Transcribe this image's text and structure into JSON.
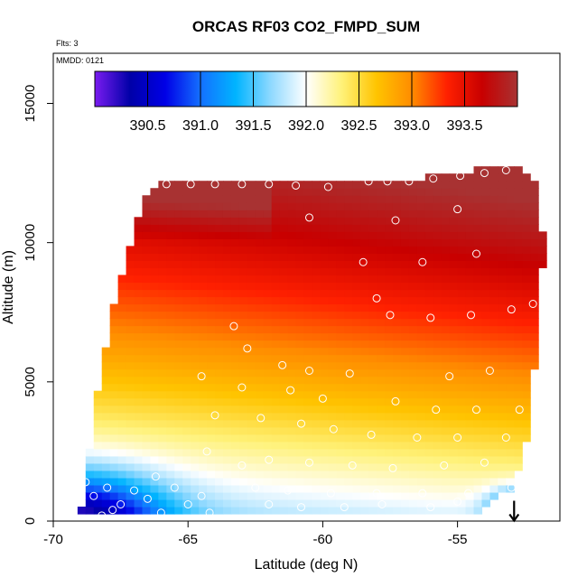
{
  "chart_data": {
    "type": "heatmap",
    "title": "ORCAS RF03 CO2_FMPD_SUM",
    "note_flights": "Flts: 3",
    "note_date": "MMDD: 0121",
    "xlabel": "Latitude (deg N)",
    "ylabel": "Altitude (m)",
    "xlim": [
      -70,
      -51.2
    ],
    "ylim": [
      0,
      16800
    ],
    "x_ticks": [
      -70,
      -65,
      -60,
      -55
    ],
    "x_tick_labels": [
      "-70",
      "-65",
      "-60",
      "-55"
    ],
    "y_ticks": [
      0,
      5000,
      10000,
      15000
    ],
    "y_tick_labels": [
      "0",
      "5000",
      "10000",
      "15000"
    ],
    "colorbar": {
      "range": [
        390.0,
        394.0
      ],
      "ticks": [
        390.5,
        391.0,
        391.5,
        392.0,
        392.5,
        393.0,
        393.5
      ],
      "tick_labels": [
        "390.5",
        "391.0",
        "391.5",
        "392.0",
        "392.5",
        "393.0",
        "393.5"
      ],
      "colors": [
        "#7a1cf0",
        "#0000a8",
        "#0000e6",
        "#1470ff",
        "#00b4ff",
        "#8fd9ff",
        "#ffffff",
        "#fff27a",
        "#ffc400",
        "#ff8c00",
        "#ff2000",
        "#c80000",
        "#a83232"
      ]
    },
    "field_boundary": {
      "lat": [
        -69,
        -68.3,
        -67.7,
        -67.2,
        -66.8,
        -66.2,
        -58.2,
        -53.0,
        -52.3,
        -52.0,
        -51.8,
        -51.9,
        -52.0,
        -52.2,
        -52.4,
        -53.0,
        -54.0,
        -55.0,
        -60.0,
        -65.0,
        -69.0
      ],
      "alt": [
        300,
        5000,
        8000,
        9700,
        11200,
        12100,
        12100,
        12800,
        12500,
        12000,
        10000,
        8000,
        7000,
        5000,
        3000,
        1200,
        400,
        200,
        200,
        200,
        300
      ]
    },
    "sample_points": [
      {
        "lat": -65.8,
        "alt": 12100
      },
      {
        "lat": -64.9,
        "alt": 12100
      },
      {
        "lat": -64.0,
        "alt": 12100
      },
      {
        "lat": -63.0,
        "alt": 12100
      },
      {
        "lat": -62.0,
        "alt": 12100
      },
      {
        "lat": -61.0,
        "alt": 12050
      },
      {
        "lat": -59.8,
        "alt": 12000
      },
      {
        "lat": -58.3,
        "alt": 12200
      },
      {
        "lat": -57.6,
        "alt": 12200
      },
      {
        "lat": -56.8,
        "alt": 12200
      },
      {
        "lat": -55.9,
        "alt": 12300
      },
      {
        "lat": -54.9,
        "alt": 12400
      },
      {
        "lat": -54.0,
        "alt": 12500
      },
      {
        "lat": -53.2,
        "alt": 12600
      },
      {
        "lat": -60.5,
        "alt": 10900
      },
      {
        "lat": -57.3,
        "alt": 10800
      },
      {
        "lat": -55.0,
        "alt": 11200
      },
      {
        "lat": -54.3,
        "alt": 9600
      },
      {
        "lat": -58.5,
        "alt": 9300
      },
      {
        "lat": -56.3,
        "alt": 9300
      },
      {
        "lat": -58.0,
        "alt": 8000
      },
      {
        "lat": -57.5,
        "alt": 7400
      },
      {
        "lat": -56.0,
        "alt": 7300
      },
      {
        "lat": -54.5,
        "alt": 7400
      },
      {
        "lat": -53.0,
        "alt": 7600
      },
      {
        "lat": -52.2,
        "alt": 7800
      },
      {
        "lat": -63.3,
        "alt": 7000
      },
      {
        "lat": -62.8,
        "alt": 6200
      },
      {
        "lat": -61.5,
        "alt": 5600
      },
      {
        "lat": -60.5,
        "alt": 5400
      },
      {
        "lat": -59.0,
        "alt": 5300
      },
      {
        "lat": -55.3,
        "alt": 5200
      },
      {
        "lat": -53.8,
        "alt": 5400
      },
      {
        "lat": -64.5,
        "alt": 5200
      },
      {
        "lat": -63.0,
        "alt": 4800
      },
      {
        "lat": -61.2,
        "alt": 4700
      },
      {
        "lat": -60.0,
        "alt": 4400
      },
      {
        "lat": -57.3,
        "alt": 4300
      },
      {
        "lat": -55.8,
        "alt": 4000
      },
      {
        "lat": -54.3,
        "alt": 4000
      },
      {
        "lat": -52.7,
        "alt": 4000
      },
      {
        "lat": -64.0,
        "alt": 3800
      },
      {
        "lat": -62.3,
        "alt": 3700
      },
      {
        "lat": -60.8,
        "alt": 3500
      },
      {
        "lat": -59.6,
        "alt": 3300
      },
      {
        "lat": -58.2,
        "alt": 3100
      },
      {
        "lat": -56.5,
        "alt": 3000
      },
      {
        "lat": -55.0,
        "alt": 3000
      },
      {
        "lat": -53.2,
        "alt": 3000
      },
      {
        "lat": -62.0,
        "alt": 2200
      },
      {
        "lat": -60.5,
        "alt": 2100
      },
      {
        "lat": -58.9,
        "alt": 2000
      },
      {
        "lat": -57.4,
        "alt": 1900
      },
      {
        "lat": -55.5,
        "alt": 2000
      },
      {
        "lat": -54.0,
        "alt": 2100
      },
      {
        "lat": -62.5,
        "alt": 1200
      },
      {
        "lat": -61.3,
        "alt": 1100
      },
      {
        "lat": -59.7,
        "alt": 1000
      },
      {
        "lat": -58.0,
        "alt": 1000
      },
      {
        "lat": -56.3,
        "alt": 1000
      },
      {
        "lat": -54.6,
        "alt": 1000
      },
      {
        "lat": -53.0,
        "alt": 1200
      },
      {
        "lat": -62.0,
        "alt": 600
      },
      {
        "lat": -60.8,
        "alt": 500
      },
      {
        "lat": -59.2,
        "alt": 500
      },
      {
        "lat": -57.8,
        "alt": 600
      },
      {
        "lat": -56.0,
        "alt": 500
      },
      {
        "lat": -55.0,
        "alt": 700
      },
      {
        "lat": -68.8,
        "alt": 1400
      },
      {
        "lat": -68.5,
        "alt": 900
      },
      {
        "lat": -68.0,
        "alt": 1200
      },
      {
        "lat": -67.5,
        "alt": 600
      },
      {
        "lat": -67.0,
        "alt": 1100
      },
      {
        "lat": -66.5,
        "alt": 800
      },
      {
        "lat": -66.0,
        "alt": 300
      },
      {
        "lat": -65.5,
        "alt": 1200
      },
      {
        "lat": -65.0,
        "alt": 600
      },
      {
        "lat": -64.5,
        "alt": 900
      },
      {
        "lat": -64.2,
        "alt": 300
      },
      {
        "lat": -68.2,
        "alt": 200
      },
      {
        "lat": -67.8,
        "alt": 400
      },
      {
        "lat": -63.0,
        "alt": 2000
      },
      {
        "lat": -64.3,
        "alt": 2500
      },
      {
        "lat": -66.2,
        "alt": 1600
      }
    ],
    "flight_end_marker": {
      "lat": -52.9,
      "alt": 600,
      "symbol": "down-arrow"
    }
  }
}
